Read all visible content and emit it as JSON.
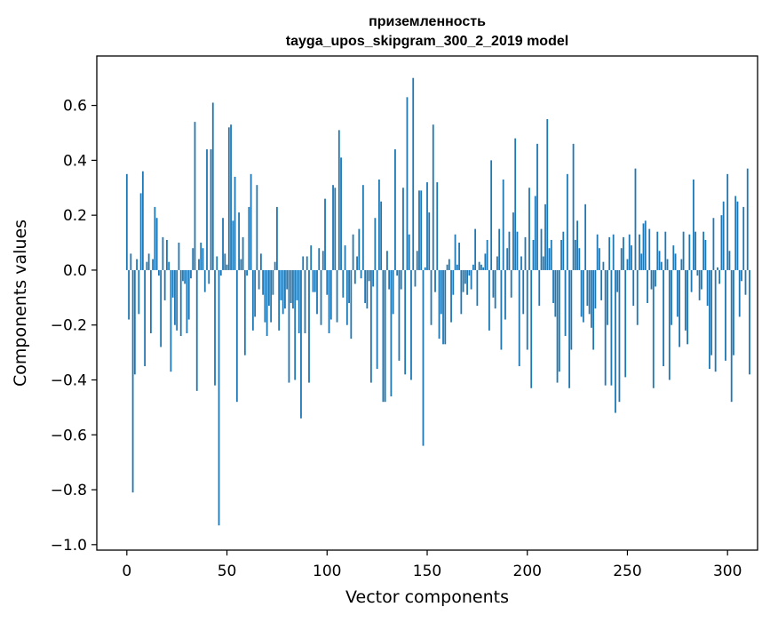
{
  "chart_data": {
    "type": "bar",
    "title": "приземленность",
    "subtitle": "tayga_upos_skipgram_300_2_2019 model",
    "xlabel": "Vector components",
    "ylabel": "Components values",
    "xlim": [
      -15,
      315
    ],
    "ylim": [
      -1.02,
      0.78
    ],
    "xticks": [
      0,
      50,
      100,
      150,
      200,
      250,
      300
    ],
    "xtick_labels": [
      "0",
      "50",
      "100",
      "150",
      "200",
      "250",
      "300"
    ],
    "yticks": [
      -1.0,
      -0.8,
      -0.6,
      -0.4,
      -0.2,
      0.0,
      0.2,
      0.4,
      0.6
    ],
    "ytick_labels": [
      "−1.0",
      "−0.8",
      "−0.6",
      "−0.4",
      "−0.2",
      "0.0",
      "0.2",
      "0.4",
      "0.6"
    ],
    "bar_color": "#1f77b4",
    "grid": false,
    "series": [
      {
        "name": "приземленность",
        "values": [
          0.35,
          -0.18,
          0.06,
          -0.81,
          -0.38,
          0.04,
          -0.16,
          0.28,
          0.36,
          -0.35,
          0.03,
          0.06,
          -0.23,
          0.04,
          0.23,
          0.19,
          -0.02,
          -0.28,
          0.12,
          -0.11,
          0.11,
          0.03,
          -0.37,
          -0.1,
          -0.2,
          -0.22,
          0.1,
          -0.24,
          -0.04,
          -0.05,
          -0.23,
          -0.18,
          -0.03,
          0.08,
          0.54,
          -0.44,
          0.04,
          0.1,
          0.08,
          -0.08,
          0.44,
          -0.05,
          0.44,
          0.61,
          -0.42,
          0.05,
          -0.93,
          -0.02,
          0.19,
          0.06,
          0.02,
          0.52,
          0.53,
          0.18,
          0.34,
          -0.48,
          0.21,
          0.04,
          0.12,
          -0.31,
          -0.02,
          0.23,
          0.35,
          -0.22,
          -0.17,
          0.31,
          -0.07,
          0.06,
          -0.09,
          -0.19,
          -0.24,
          -0.13,
          -0.19,
          -0.09,
          0.03,
          0.23,
          -0.22,
          -0.11,
          -0.16,
          -0.14,
          -0.07,
          -0.41,
          -0.12,
          -0.14,
          -0.4,
          -0.11,
          -0.23,
          -0.54,
          0.05,
          -0.23,
          0.05,
          -0.41,
          0.09,
          -0.08,
          -0.08,
          -0.16,
          0.08,
          -0.2,
          0.07,
          0.26,
          -0.09,
          -0.23,
          -0.18,
          0.31,
          0.3,
          -0.19,
          0.51,
          0.41,
          -0.1,
          0.09,
          -0.2,
          -0.12,
          -0.25,
          0.13,
          -0.05,
          0.05,
          0.15,
          -0.03,
          0.31,
          -0.12,
          -0.14,
          -0.04,
          -0.41,
          -0.06,
          0.19,
          -0.36,
          0.33,
          0.25,
          -0.48,
          -0.48,
          0.07,
          -0.07,
          -0.46,
          -0.16,
          0.44,
          -0.02,
          -0.33,
          -0.07,
          0.3,
          -0.38,
          0.63,
          0.13,
          -0.4,
          0.7,
          -0.06,
          0.07,
          0.29,
          0.29,
          -0.64,
          0.01,
          0.32,
          0.21,
          -0.2,
          0.53,
          -0.08,
          0.32,
          -0.25,
          -0.16,
          -0.27,
          -0.27,
          0.02,
          0.04,
          -0.19,
          -0.09,
          0.13,
          0.02,
          0.1,
          -0.16,
          -0.08,
          -0.05,
          -0.09,
          -0.02,
          -0.07,
          0.02,
          0.15,
          -0.13,
          0.03,
          0.02,
          0.01,
          0.06,
          0.11,
          -0.22,
          0.4,
          -0.1,
          -0.14,
          0.05,
          0.15,
          -0.29,
          0.33,
          -0.18,
          0.08,
          0.14,
          -0.1,
          0.21,
          0.48,
          0.14,
          -0.35,
          0.05,
          -0.16,
          0.12,
          -0.29,
          0.3,
          -0.43,
          0.11,
          0.27,
          0.46,
          -0.13,
          0.15,
          0.05,
          0.24,
          0.55,
          0.08,
          0.11,
          -0.12,
          -0.17,
          -0.41,
          -0.37,
          0.11,
          0.14,
          -0.24,
          0.35,
          -0.43,
          -0.29,
          0.46,
          0.11,
          0.18,
          0.08,
          -0.17,
          -0.19,
          0.24,
          -0.13,
          -0.16,
          -0.21,
          -0.29,
          -0.14,
          0.13,
          0.08,
          -0.11,
          0.03,
          -0.42,
          -0.2,
          0.12,
          -0.42,
          0.13,
          -0.52,
          -0.08,
          -0.48,
          0.08,
          0.12,
          -0.39,
          0.04,
          0.13,
          0.09,
          -0.13,
          0.37,
          -0.2,
          0.13,
          0.06,
          0.17,
          0.18,
          -0.12,
          0.15,
          -0.07,
          -0.43,
          -0.06,
          0.14,
          0.07,
          0.03,
          -0.35,
          0.14,
          0.04,
          -0.4,
          -0.2,
          0.09,
          0.06,
          -0.17,
          -0.28,
          0.04,
          0.14,
          -0.22,
          -0.27,
          0.13,
          -0.08,
          0.33,
          0.14,
          -0.02,
          -0.11,
          -0.07,
          0.14,
          0.11,
          -0.13,
          -0.36,
          -0.31,
          0.19,
          -0.37,
          0.01,
          -0.05,
          0.2,
          0.25,
          -0.33,
          0.35,
          0.07,
          -0.48,
          -0.31,
          0.27,
          0.25,
          -0.17,
          -0.04,
          0.23,
          -0.09,
          0.37,
          -0.38
        ]
      }
    ]
  }
}
